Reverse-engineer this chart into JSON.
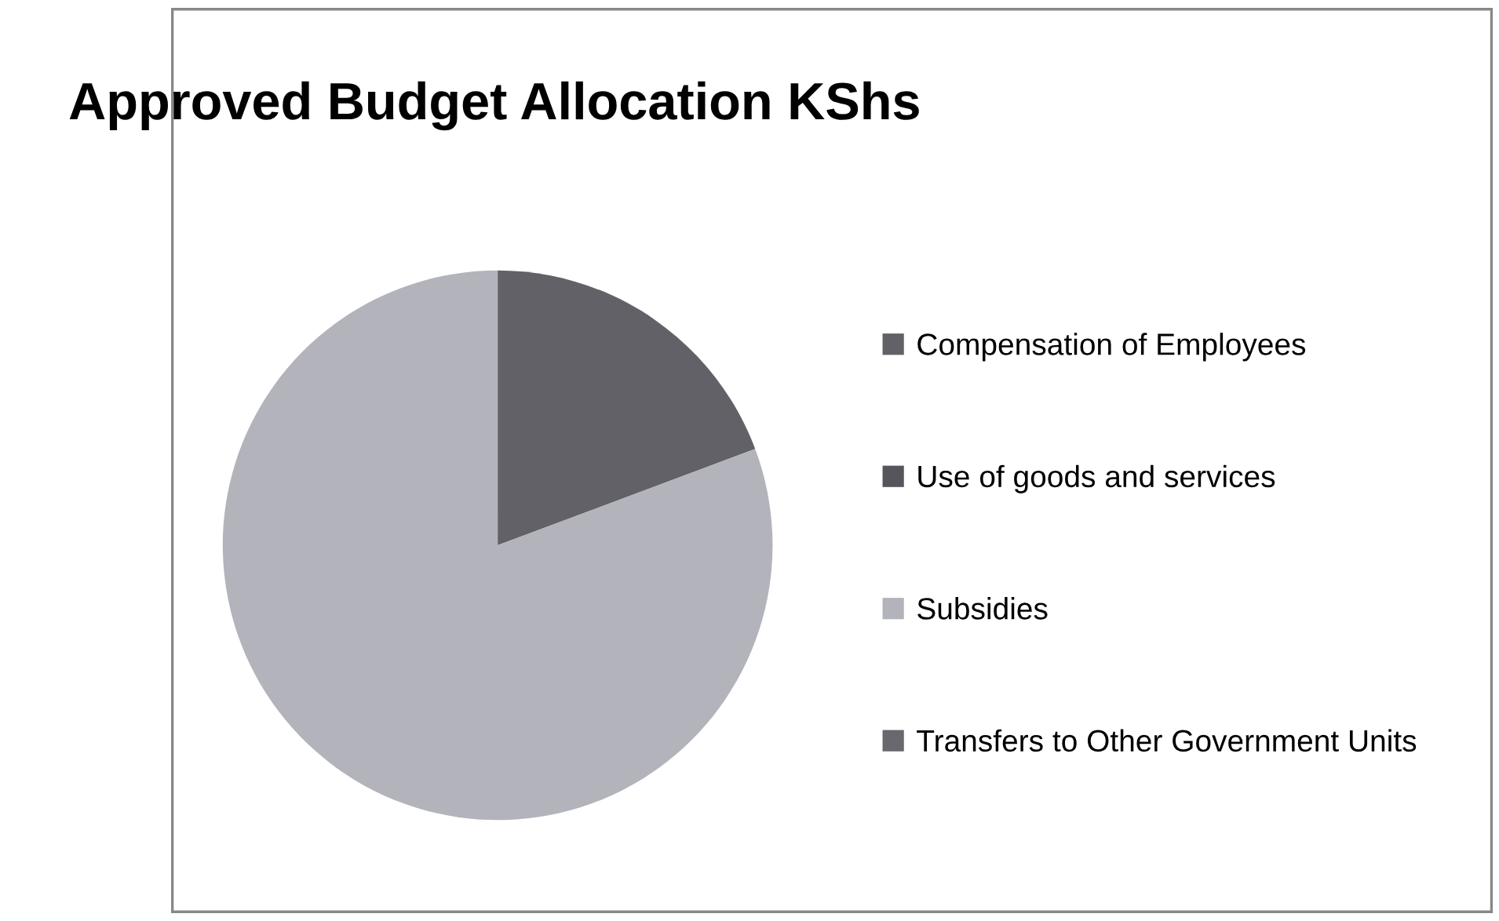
{
  "chart_data": {
    "type": "pie",
    "title": "Approved Budget Allocation KShs",
    "categories": [
      "Compensation of Employees",
      "Use of goods and services",
      "Subsidies",
      "Transfers to Other Government Units"
    ],
    "values": [
      19.3,
      0,
      80.7,
      0
    ],
    "colors": [
      "#616167",
      "#55555b",
      "#b3b3bb",
      "#68686e"
    ],
    "legend": "right"
  }
}
